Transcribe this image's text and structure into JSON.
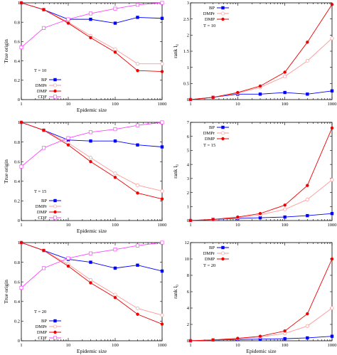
{
  "chart_data": [
    {
      "type": "line",
      "panel": "top-left",
      "xlabel": "Epidemic size",
      "ylabel": "True origin",
      "xscale": "log",
      "xlim": [
        1,
        1000
      ],
      "ylim": [
        0,
        1
      ],
      "xticks": [
        "1",
        "10",
        "100",
        "1000"
      ],
      "yticks": [
        "0",
        "0.2",
        "0.4",
        "0.6",
        "0.8",
        "1"
      ],
      "legend_title": "T = 10",
      "legend_position": "bottom-left",
      "x": [
        1,
        3,
        10,
        30,
        100,
        300,
        1000
      ],
      "series": [
        {
          "name": "BP",
          "color": "#0000ff",
          "marker": "square",
          "values": [
            1.0,
            0.93,
            0.83,
            0.83,
            0.79,
            0.85,
            0.84
          ]
        },
        {
          "name": "DMPr",
          "color": "#ff9999",
          "marker": "circle-open",
          "values": [
            1.0,
            0.93,
            0.8,
            0.66,
            0.52,
            0.37,
            0.37
          ]
        },
        {
          "name": "DMP",
          "color": "#ee0000",
          "marker": "circle",
          "values": [
            1.0,
            0.93,
            0.79,
            0.64,
            0.49,
            0.3,
            0.29
          ]
        },
        {
          "name": "CDF",
          "color": "#ff44ff",
          "marker": "square-open",
          "values": [
            0.54,
            0.74,
            0.83,
            0.89,
            0.94,
            0.98,
            1.0
          ]
        }
      ]
    },
    {
      "type": "line",
      "panel": "top-right",
      "xlabel": "",
      "ylabel": "rank_l0",
      "xscale": "log",
      "xlim": [
        1,
        1000
      ],
      "ylim": [
        0,
        3
      ],
      "xticks": [
        "1",
        "10",
        "100",
        "1000"
      ],
      "yticks": [
        "0",
        "0.5",
        "1",
        "1.5",
        "2",
        "2.5",
        "3"
      ],
      "legend_title": "T = 10",
      "legend_position": "top-left",
      "x": [
        1,
        3,
        10,
        30,
        100,
        300,
        1000
      ],
      "series": [
        {
          "name": "BP",
          "color": "#0000ff",
          "marker": "square",
          "values": [
            0,
            0.07,
            0.17,
            0.17,
            0.22,
            0.17,
            0.27
          ]
        },
        {
          "name": "DMPr",
          "color": "#ff9999",
          "marker": "circle-open",
          "values": [
            0,
            0.07,
            0.2,
            0.38,
            0.72,
            1.2,
            1.9
          ]
        },
        {
          "name": "DMP",
          "color": "#ee0000",
          "marker": "circle",
          "values": [
            0,
            0.07,
            0.22,
            0.42,
            0.85,
            1.78,
            2.95
          ]
        }
      ]
    },
    {
      "type": "line",
      "panel": "middle-left",
      "xlabel": "Epidemic size",
      "ylabel": "True origin",
      "xscale": "log",
      "xlim": [
        1,
        1000
      ],
      "ylim": [
        0,
        1
      ],
      "xticks": [
        "1",
        "10",
        "100",
        "1000"
      ],
      "yticks": [
        "0",
        "0.2",
        "0.4",
        "0.6",
        "0.8",
        "1"
      ],
      "legend_title": "T = 15",
      "legend_position": "bottom-left",
      "x": [
        1,
        3,
        10,
        30,
        100,
        300,
        1000
      ],
      "series": [
        {
          "name": "BP",
          "color": "#0000ff",
          "marker": "square",
          "values": [
            1.0,
            0.92,
            0.82,
            0.81,
            0.81,
            0.77,
            0.75
          ]
        },
        {
          "name": "DMPr",
          "color": "#ff9999",
          "marker": "circle-open",
          "values": [
            1.0,
            0.92,
            0.79,
            0.64,
            0.48,
            0.36,
            0.3
          ]
        },
        {
          "name": "DMP",
          "color": "#ee0000",
          "marker": "circle",
          "values": [
            1.0,
            0.92,
            0.77,
            0.6,
            0.44,
            0.28,
            0.22
          ]
        },
        {
          "name": "CDF",
          "color": "#ff44ff",
          "marker": "square-open",
          "values": [
            0.55,
            0.74,
            0.84,
            0.9,
            0.93,
            0.97,
            1.0
          ]
        }
      ]
    },
    {
      "type": "line",
      "panel": "middle-right",
      "xlabel": "",
      "ylabel": "rank_l0",
      "xscale": "log",
      "xlim": [
        1,
        1000
      ],
      "ylim": [
        0,
        7
      ],
      "xticks": [
        "1",
        "10",
        "100",
        "1000"
      ],
      "yticks": [
        "0",
        "1",
        "2",
        "3",
        "4",
        "5",
        "6",
        "7"
      ],
      "legend_title": "T = 15",
      "legend_position": "top-left",
      "x": [
        1,
        3,
        10,
        30,
        100,
        300,
        1000
      ],
      "series": [
        {
          "name": "BP",
          "color": "#0000ff",
          "marker": "square",
          "values": [
            0,
            0.08,
            0.15,
            0.2,
            0.25,
            0.35,
            0.5
          ]
        },
        {
          "name": "DMPr",
          "color": "#ff9999",
          "marker": "circle-open",
          "values": [
            0,
            0.08,
            0.2,
            0.4,
            0.8,
            1.5,
            2.9
          ]
        },
        {
          "name": "DMP",
          "color": "#ee0000",
          "marker": "circle",
          "values": [
            0,
            0.08,
            0.25,
            0.5,
            1.1,
            2.5,
            6.6
          ]
        }
      ]
    },
    {
      "type": "line",
      "panel": "bottom-left",
      "xlabel": "Epidemic size",
      "ylabel": "True origin",
      "xscale": "log",
      "xlim": [
        1,
        1000
      ],
      "ylim": [
        0,
        1
      ],
      "xticks": [
        "1",
        "10",
        "100",
        "1000"
      ],
      "yticks": [
        "0",
        "0.2",
        "0.4",
        "0.6",
        "0.8",
        "1"
      ],
      "legend_title": "T = 20",
      "legend_position": "bottom-left",
      "x": [
        1,
        3,
        10,
        30,
        100,
        300,
        1000
      ],
      "series": [
        {
          "name": "BP",
          "color": "#0000ff",
          "marker": "square",
          "values": [
            1.0,
            0.92,
            0.83,
            0.8,
            0.74,
            0.77,
            0.71
          ]
        },
        {
          "name": "DMPr",
          "color": "#ff9999",
          "marker": "circle-open",
          "values": [
            1.0,
            0.92,
            0.78,
            0.62,
            0.47,
            0.33,
            0.26
          ]
        },
        {
          "name": "DMP",
          "color": "#ee0000",
          "marker": "circle",
          "values": [
            1.0,
            0.92,
            0.76,
            0.59,
            0.44,
            0.27,
            0.17
          ]
        },
        {
          "name": "CDF",
          "color": "#ff44ff",
          "marker": "square-open",
          "values": [
            0.54,
            0.74,
            0.84,
            0.89,
            0.93,
            0.97,
            1.0
          ]
        }
      ]
    },
    {
      "type": "line",
      "panel": "bottom-right",
      "xlabel": "Epidemic size",
      "ylabel": "rank_l0",
      "xscale": "log",
      "xlim": [
        1,
        1000
      ],
      "ylim": [
        0,
        12
      ],
      "xticks": [
        "1",
        "10",
        "100",
        "1000"
      ],
      "yticks": [
        "0",
        "2",
        "4",
        "6",
        "8",
        "10",
        "12"
      ],
      "legend_title": "T = 20",
      "legend_position": "top-left",
      "x": [
        1,
        3,
        10,
        30,
        100,
        300,
        1000
      ],
      "series": [
        {
          "name": "BP",
          "color": "#0000ff",
          "marker": "square",
          "values": [
            0,
            0.1,
            0.15,
            0.2,
            0.25,
            0.35,
            0.55
          ]
        },
        {
          "name": "DMPr",
          "color": "#ff9999",
          "marker": "circle-open",
          "values": [
            0,
            0.1,
            0.25,
            0.45,
            0.9,
            1.8,
            4.0
          ]
        },
        {
          "name": "DMP",
          "color": "#ee0000",
          "marker": "circle",
          "values": [
            0,
            0.1,
            0.3,
            0.55,
            1.2,
            3.3,
            10.0
          ]
        }
      ]
    }
  ]
}
